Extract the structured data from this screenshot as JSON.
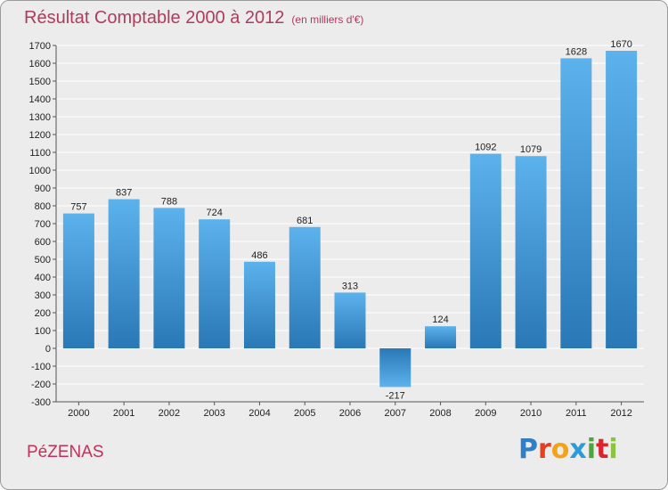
{
  "header": {
    "title": "Résultat Comptable 2000 à 2012",
    "subtitle": "(en milliers d'€)"
  },
  "footer": {
    "commune": "PéZENAS",
    "logo_letters": [
      "P",
      "r",
      "o",
      "x",
      "i",
      "t",
      "i"
    ],
    "logo_colors": [
      "#2c7fc8",
      "#e83d1f",
      "#f2a31a",
      "#2c9bd8",
      "#4aa83a",
      "#d9262e",
      "#8bc53f"
    ]
  },
  "colors": {
    "bar_light": "#5aaee8",
    "bar_dark": "#2a7ab8",
    "grid": "#ffffff",
    "title": "#b13a5e"
  },
  "chart_data": {
    "type": "bar",
    "title": "Résultat Comptable 2000 à 2012",
    "xlabel": "",
    "ylabel": "",
    "categories": [
      "2000",
      "2001",
      "2002",
      "2003",
      "2004",
      "2005",
      "2006",
      "2007",
      "2008",
      "2009",
      "2010",
      "2011",
      "2012"
    ],
    "values": [
      757,
      837,
      788,
      724,
      486,
      681,
      313,
      -217,
      124,
      1092,
      1079,
      1628,
      1670
    ],
    "value_labels": [
      "757",
      "837",
      "788",
      "724",
      "486",
      "681",
      "313",
      "-217",
      "124",
      "1092",
      "1079",
      "1628",
      "1670"
    ],
    "ylim": [
      -300,
      1700
    ],
    "yticks": [
      "-300",
      "-200",
      "-100",
      "0",
      "100",
      "200",
      "300",
      "400",
      "500",
      "600",
      "700",
      "800",
      "900",
      "1000",
      "1100",
      "1200",
      "1300",
      "1400",
      "1500",
      "1600",
      "1700"
    ],
    "grid": true
  }
}
